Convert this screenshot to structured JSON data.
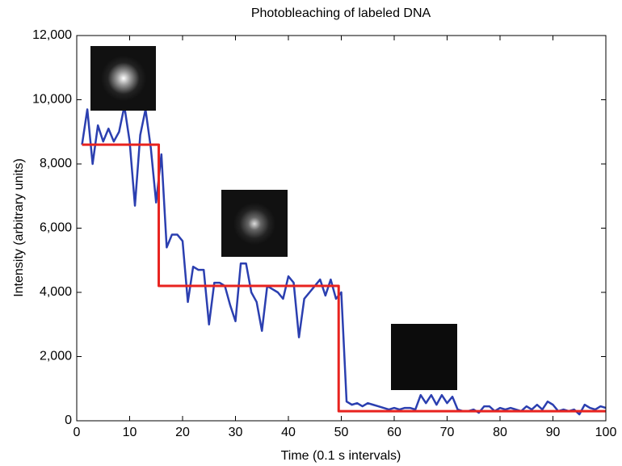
{
  "chart_data": {
    "type": "line",
    "title": "Photobleaching of labeled DNA",
    "xlabel": "Time (0.1 s intervals)",
    "ylabel": "Intensity (arbitrary units)",
    "xlim": [
      0,
      100
    ],
    "xticks": [
      0,
      10,
      20,
      30,
      40,
      50,
      60,
      70,
      80,
      90,
      100
    ],
    "ylim": [
      0,
      12000
    ],
    "yticks": [
      0,
      {
        "value": 2000,
        "label": "2,000"
      },
      {
        "value": 4000,
        "label": "4,000"
      },
      {
        "value": 6000,
        "label": "6,000"
      },
      {
        "value": 8000,
        "label": "8,000"
      },
      {
        "value": 10000,
        "label": "10,000"
      },
      {
        "value": 12000,
        "label": "12,000"
      }
    ],
    "series": [
      {
        "color": "#2b3fb0",
        "x": [
          1,
          2,
          3,
          4,
          5,
          6,
          7,
          8,
          9,
          10,
          11,
          12,
          13,
          14,
          15,
          16,
          17,
          18,
          19,
          20,
          21,
          22,
          23,
          24,
          25,
          26,
          27,
          28,
          29,
          30,
          31,
          32,
          33,
          34,
          35,
          36,
          37,
          38,
          39,
          40,
          41,
          42,
          43,
          44,
          45,
          46,
          47,
          48,
          49,
          50,
          51,
          52,
          53,
          54,
          55,
          56,
          57,
          58,
          59,
          60,
          61,
          62,
          63,
          64,
          65,
          66,
          67,
          68,
          69,
          70,
          71,
          72,
          73,
          74,
          75,
          76,
          77,
          78,
          79,
          80,
          81,
          82,
          83,
          84,
          85,
          86,
          87,
          88,
          89,
          90,
          91,
          92,
          93,
          94,
          95,
          96,
          97,
          98,
          99,
          100
        ],
        "values": [
          8600,
          9700,
          8000,
          9200,
          8700,
          9100,
          8700,
          9000,
          9800,
          8700,
          6700,
          8900,
          9700,
          8500,
          6800,
          8300,
          5400,
          5800,
          5800,
          5600,
          3700,
          4800,
          4700,
          4700,
          3000,
          4300,
          4300,
          4200,
          3600,
          3100,
          4900,
          4900,
          4000,
          3700,
          2800,
          4200,
          4100,
          4000,
          3800,
          4500,
          4300,
          2600,
          3800,
          4000,
          4200,
          4400,
          3900,
          4400,
          3800,
          4000,
          600,
          500,
          550,
          450,
          550,
          500,
          450,
          400,
          350,
          400,
          350,
          400,
          400,
          350,
          800,
          550,
          800,
          500,
          800,
          550,
          750,
          350,
          300,
          300,
          350,
          250,
          450,
          450,
          300,
          400,
          350,
          400,
          350,
          300,
          450,
          350,
          500,
          350,
          600,
          500,
          300,
          350,
          300,
          350,
          200,
          500,
          400,
          350,
          450,
          400
        ]
      },
      {
        "color": "#e8231f",
        "x": [
          1,
          15.5,
          15.5,
          49.5,
          49.5,
          100
        ],
        "values": [
          8600,
          8600,
          4200,
          4200,
          300,
          300
        ]
      }
    ]
  }
}
